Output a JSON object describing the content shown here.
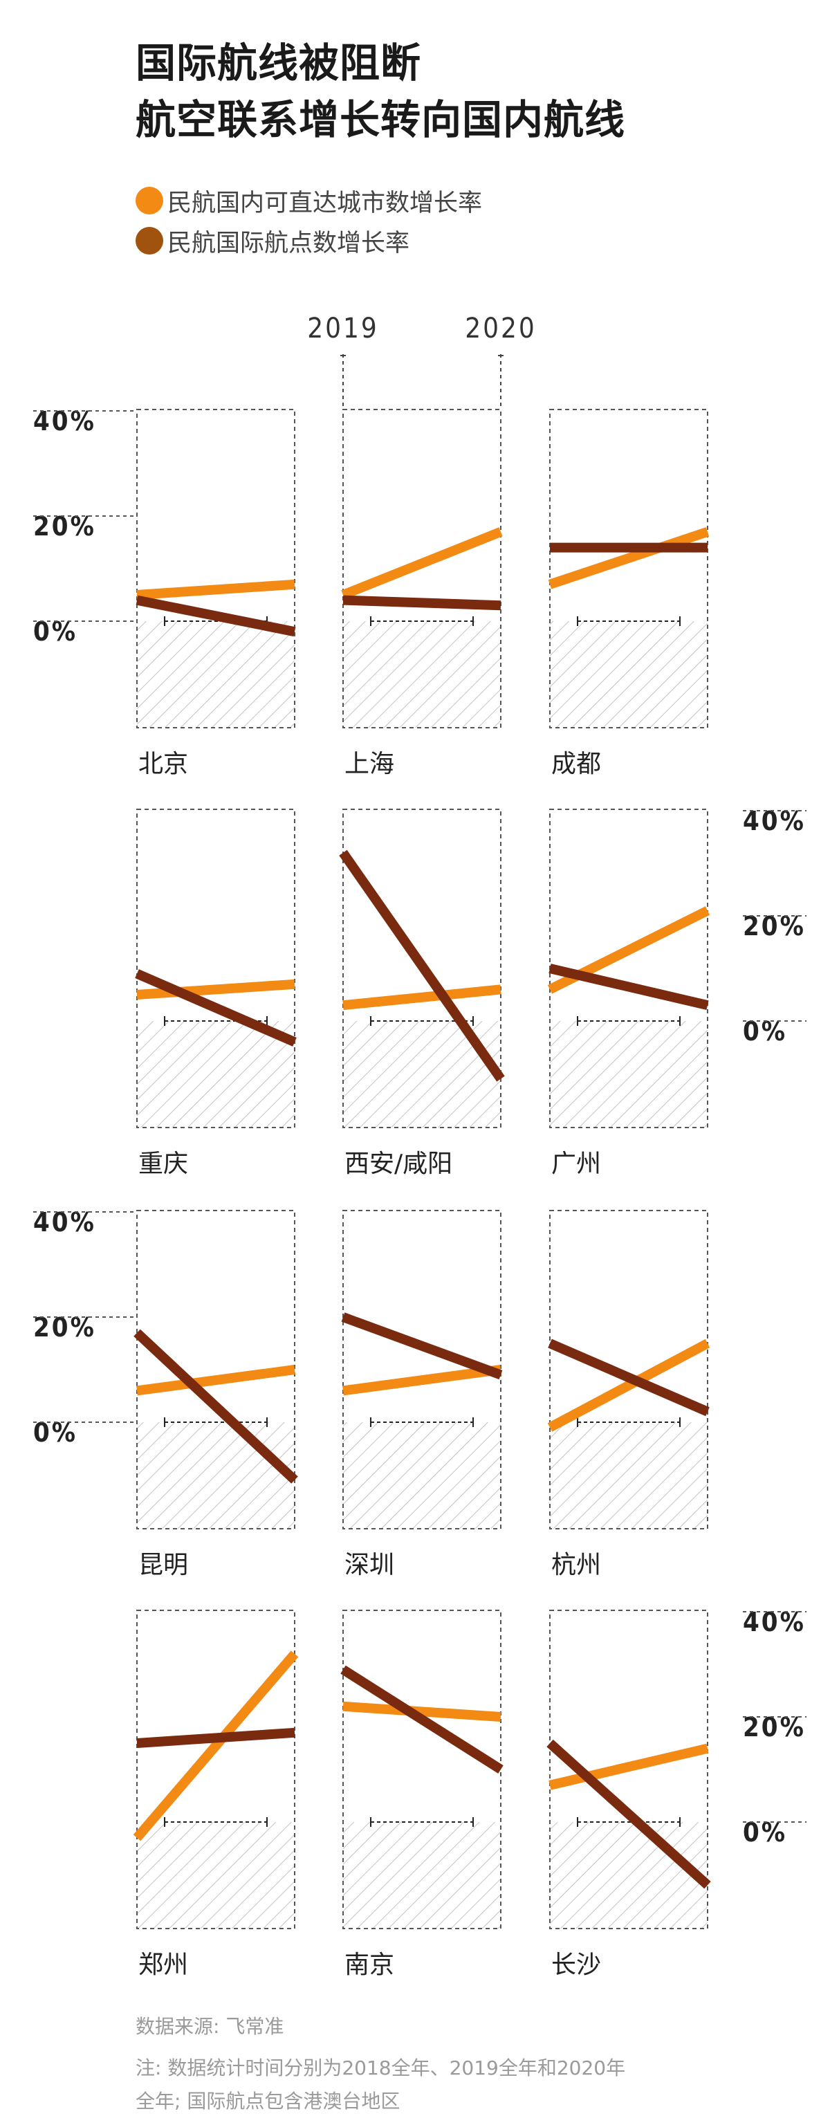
{
  "title": [
    "国际航线被阻断",
    "航空联系增长转向国内航线"
  ],
  "legend": [
    {
      "label": "民航国内可直达城市数增长率",
      "color": "#F28A14"
    },
    {
      "label": "民航国际航点数增长率",
      "color": "#A0520F"
    }
  ],
  "chart_data": {
    "type": "line",
    "x": [
      "2019",
      "2020"
    ],
    "yticks": [
      "40%",
      "20%",
      "0%"
    ],
    "ylim": [
      -20,
      40
    ],
    "series_names": [
      "民航国内可直达城市数增长率",
      "民航国际航点数增长率"
    ],
    "series_colors": [
      "#F28A14",
      "#7A2A0E"
    ],
    "panels": [
      {
        "city": "北京",
        "domestic": [
          5,
          7
        ],
        "international": [
          4,
          -2
        ]
      },
      {
        "city": "上海",
        "domestic": [
          5,
          17
        ],
        "international": [
          4,
          3
        ]
      },
      {
        "city": "成都",
        "domestic": [
          7,
          17
        ],
        "international": [
          14,
          14
        ]
      },
      {
        "city": "重庆",
        "domestic": [
          5,
          7
        ],
        "international": [
          9,
          -4
        ]
      },
      {
        "city": "西安/咸阳",
        "domestic": [
          3,
          6
        ],
        "international": [
          32,
          -11
        ]
      },
      {
        "city": "广州",
        "domestic": [
          6,
          21
        ],
        "international": [
          10,
          3
        ]
      },
      {
        "city": "昆明",
        "domestic": [
          6,
          10
        ],
        "international": [
          17,
          -11
        ]
      },
      {
        "city": "深圳",
        "domestic": [
          6,
          10
        ],
        "international": [
          20,
          9
        ]
      },
      {
        "city": "杭州",
        "domestic": [
          -1,
          15
        ],
        "international": [
          15,
          2
        ]
      },
      {
        "city": "郑州",
        "domestic": [
          -3,
          32
        ],
        "international": [
          15,
          17
        ]
      },
      {
        "city": "南京",
        "domestic": [
          22,
          20
        ],
        "international": [
          29,
          10
        ]
      },
      {
        "city": "长沙",
        "domestic": [
          7,
          14
        ],
        "international": [
          15,
          -12
        ]
      }
    ]
  },
  "source": "数据来源: 飞常准",
  "note_lines": [
    "注: 数据统计时间分别为2018全年、2019全年和2020年",
    "全年; 国际航点包含港澳台地区"
  ]
}
